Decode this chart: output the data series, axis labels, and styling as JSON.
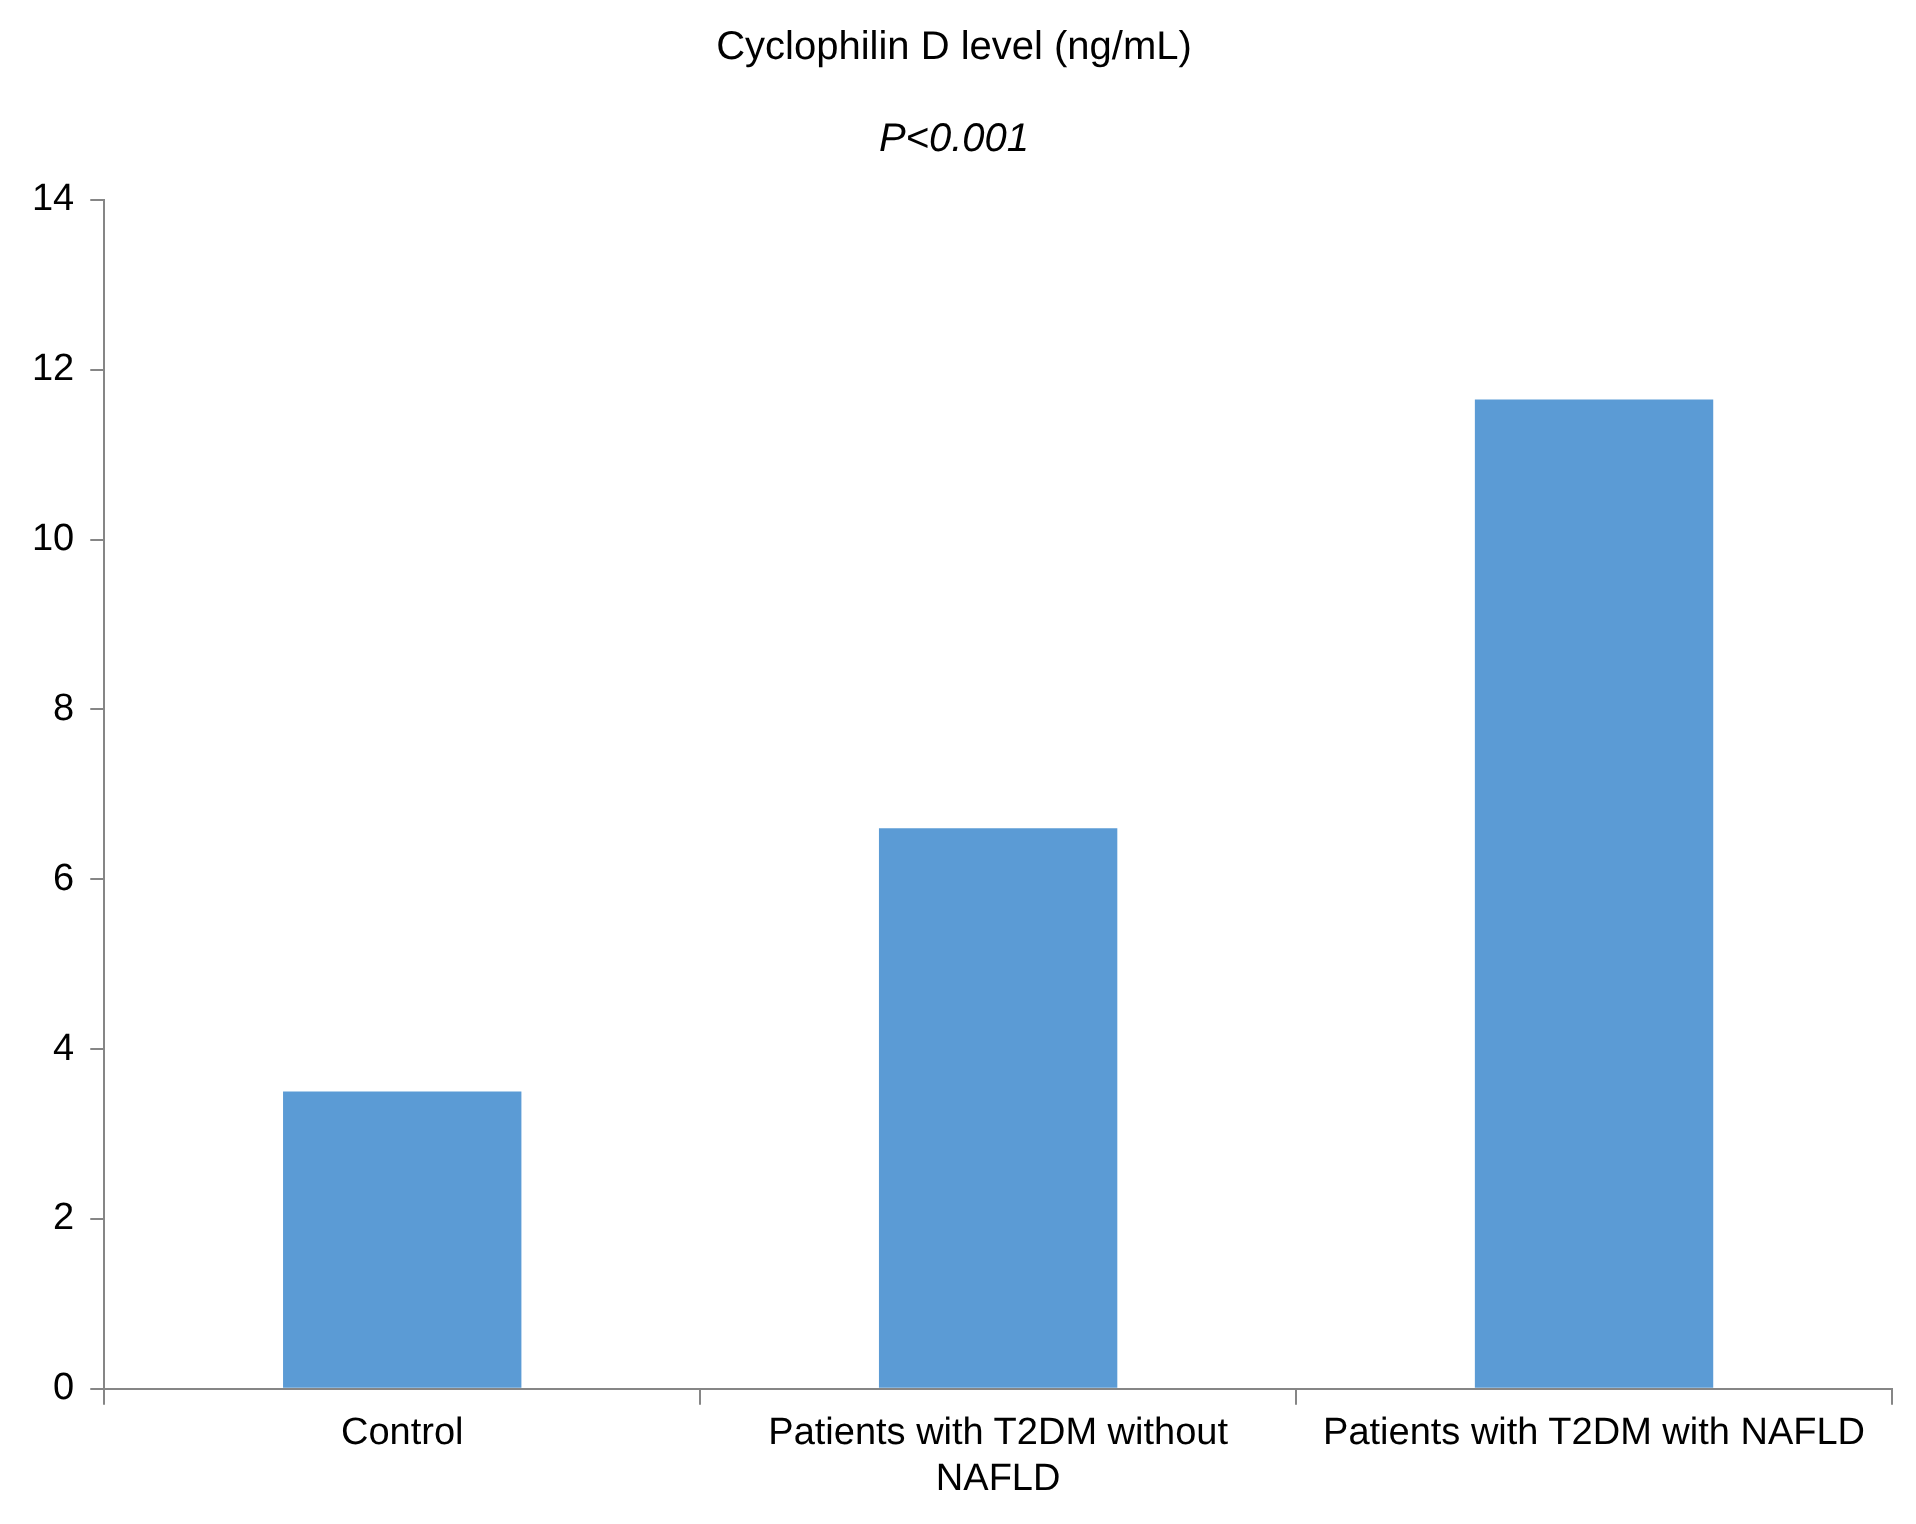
{
  "chart_data": {
    "type": "bar",
    "title": "Cyclophilin D level (ng/mL)",
    "subtitle": "P<0.001",
    "categories": [
      "Control",
      "Patients with T2DM without NAFLD",
      "Patients with T2DM with NAFLD"
    ],
    "values": [
      3.5,
      6.6,
      11.65
    ],
    "color": "#5b9bd5",
    "ylim": [
      0,
      14
    ],
    "yticks": [
      0,
      2,
      4,
      6,
      8,
      10,
      12,
      14
    ],
    "grid": false,
    "legend": false
  }
}
